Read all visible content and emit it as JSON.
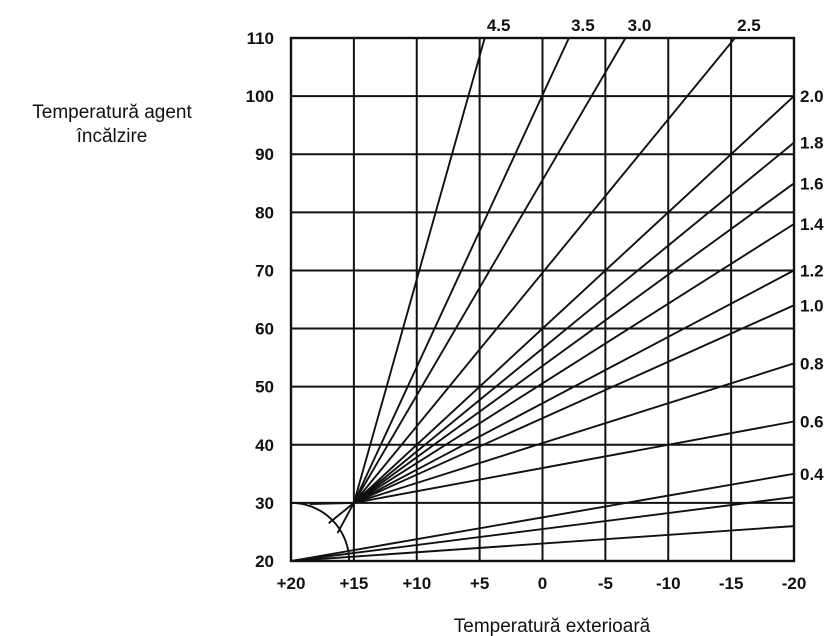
{
  "chart_data": {
    "type": "line",
    "title": "",
    "xlabel": "Temperatură exterioară",
    "ylabel_lines": [
      "Temperatură agent",
      "încălzire"
    ],
    "x_ticks": [
      {
        "value": 20,
        "label": "+20"
      },
      {
        "value": 15,
        "label": "+15"
      },
      {
        "value": 10,
        "label": "+10"
      },
      {
        "value": 5,
        "label": "+5"
      },
      {
        "value": 0,
        "label": "0"
      },
      {
        "value": -5,
        "label": "-5"
      },
      {
        "value": -10,
        "label": "-10"
      },
      {
        "value": -15,
        "label": "-15"
      },
      {
        "value": -20,
        "label": "-20"
      }
    ],
    "y_ticks": [
      20,
      30,
      40,
      50,
      60,
      70,
      80,
      90,
      100,
      110
    ],
    "xlim": [
      20,
      -20
    ],
    "ylim": [
      20,
      110
    ],
    "grid": true,
    "legend": "curve slopes labeled at line ends (top and right edges)",
    "origin_point": {
      "x": 20,
      "y": 20
    },
    "start_arc": {
      "center": {
        "x": 20,
        "y": 20
      },
      "y_top": 30
    },
    "series": [
      {
        "name": "4.5",
        "slope": 4.5,
        "points": [
          {
            "x": 15,
            "y": 30
          },
          {
            "x": 4.6,
            "y": 110
          }
        ]
      },
      {
        "name": "3.5",
        "slope": 3.5,
        "points": [
          {
            "x": 15,
            "y": 30
          },
          {
            "x": -2.1,
            "y": 110
          }
        ]
      },
      {
        "name": "3.0",
        "slope": 3.0,
        "points": [
          {
            "x": 15,
            "y": 30
          },
          {
            "x": -6.6,
            "y": 110
          }
        ]
      },
      {
        "name": "2.5",
        "slope": 2.5,
        "points": [
          {
            "x": 15,
            "y": 30
          },
          {
            "x": -15.3,
            "y": 110
          }
        ]
      },
      {
        "name": "2.0",
        "slope": 2.0,
        "points": [
          {
            "x": 15,
            "y": 30
          },
          {
            "x": -20,
            "y": 100
          }
        ]
      },
      {
        "name": "1.8",
        "slope": 1.8,
        "points": [
          {
            "x": 15,
            "y": 30
          },
          {
            "x": -20,
            "y": 92
          }
        ]
      },
      {
        "name": "1.6",
        "slope": 1.6,
        "points": [
          {
            "x": 15,
            "y": 30
          },
          {
            "x": -20,
            "y": 85
          }
        ]
      },
      {
        "name": "1.4",
        "slope": 1.4,
        "points": [
          {
            "x": 15,
            "y": 30
          },
          {
            "x": -20,
            "y": 78
          }
        ]
      },
      {
        "name": "1.2",
        "slope": 1.2,
        "points": [
          {
            "x": 15,
            "y": 30
          },
          {
            "x": -20,
            "y": 70
          }
        ]
      },
      {
        "name": "1.0",
        "slope": 1.0,
        "points": [
          {
            "x": 15,
            "y": 30
          },
          {
            "x": -20,
            "y": 64
          }
        ]
      },
      {
        "name": "0.8",
        "slope": 0.8,
        "points": [
          {
            "x": 15,
            "y": 30
          },
          {
            "x": -20,
            "y": 54
          }
        ]
      },
      {
        "name": "0.6",
        "slope": 0.6,
        "points": [
          {
            "x": 15,
            "y": 30
          },
          {
            "x": -20,
            "y": 44
          }
        ]
      },
      {
        "name": "0.4",
        "slope": 0.4,
        "points": [
          {
            "x": 20,
            "y": 20
          },
          {
            "x": -20,
            "y": 35
          }
        ]
      }
    ],
    "fan_lines": [
      {
        "points": [
          {
            "x": 18.5,
            "y": 29.8
          },
          {
            "x": 15,
            "y": 30
          }
        ]
      },
      {
        "points": [
          {
            "x": 17.0,
            "y": 26.5
          },
          {
            "x": 15,
            "y": 30
          }
        ]
      },
      {
        "points": [
          {
            "x": 16.3,
            "y": 24.8
          },
          {
            "x": 15,
            "y": 30
          }
        ]
      },
      {
        "points": [
          {
            "x": 20,
            "y": 20
          },
          {
            "x": -20,
            "y": 31
          }
        ]
      },
      {
        "points": [
          {
            "x": 20,
            "y": 20
          },
          {
            "x": -20,
            "y": 26
          }
        ]
      }
    ]
  }
}
